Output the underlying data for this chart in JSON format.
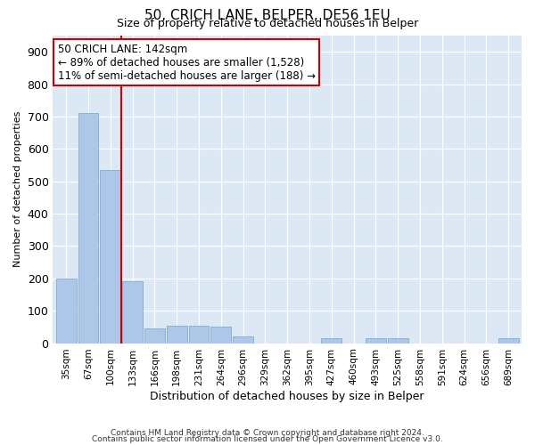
{
  "title": "50, CRICH LANE, BELPER, DE56 1EU",
  "subtitle": "Size of property relative to detached houses in Belper",
  "xlabel": "Distribution of detached houses by size in Belper",
  "ylabel": "Number of detached properties",
  "categories": [
    "35sqm",
    "67sqm",
    "100sqm",
    "133sqm",
    "166sqm",
    "198sqm",
    "231sqm",
    "264sqm",
    "296sqm",
    "329sqm",
    "362sqm",
    "395sqm",
    "427sqm",
    "460sqm",
    "493sqm",
    "525sqm",
    "558sqm",
    "591sqm",
    "624sqm",
    "656sqm",
    "689sqm"
  ],
  "values": [
    200,
    710,
    535,
    190,
    45,
    55,
    55,
    50,
    20,
    0,
    0,
    0,
    15,
    0,
    15,
    15,
    0,
    0,
    0,
    0,
    15
  ],
  "bar_color": "#aec6e8",
  "bar_edge_color": "#7bafd4",
  "vline_x_idx": 3,
  "vline_color": "#cc0000",
  "annotation_text": "50 CRICH LANE: 142sqm\n← 89% of detached houses are smaller (1,528)\n11% of semi-detached houses are larger (188) →",
  "annotation_box_color": "#ffffff",
  "annotation_box_edge_color": "#cc0000",
  "ylim": [
    0,
    950
  ],
  "yticks": [
    0,
    100,
    200,
    300,
    400,
    500,
    600,
    700,
    800,
    900
  ],
  "bg_color": "#dde8f5",
  "footer1": "Contains HM Land Registry data © Crown copyright and database right 2024.",
  "footer2": "Contains public sector information licensed under the Open Government Licence v3.0."
}
